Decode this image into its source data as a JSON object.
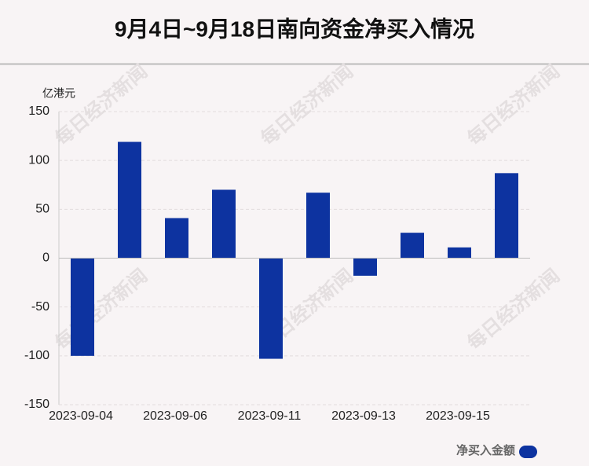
{
  "chart_data": {
    "type": "bar",
    "title": "9月4日~9月18日南向资金净买入情况",
    "y_label": "亿港元",
    "watermark": "每日经济新闻",
    "categories": [
      "2023-09-04",
      null,
      "2023-09-06",
      null,
      "2023-09-11",
      null,
      "2023-09-13",
      null,
      "2023-09-15",
      null
    ],
    "series": [
      {
        "name": "净买入金额",
        "color": "#0d33a0",
        "values": [
          -100,
          119,
          41,
          70,
          -103,
          67,
          -18,
          26,
          11,
          87
        ]
      }
    ],
    "ylim": [
      -150,
      150
    ],
    "yticks": [
      -150,
      -100,
      -50,
      0,
      50,
      100,
      150
    ],
    "grid": true
  }
}
